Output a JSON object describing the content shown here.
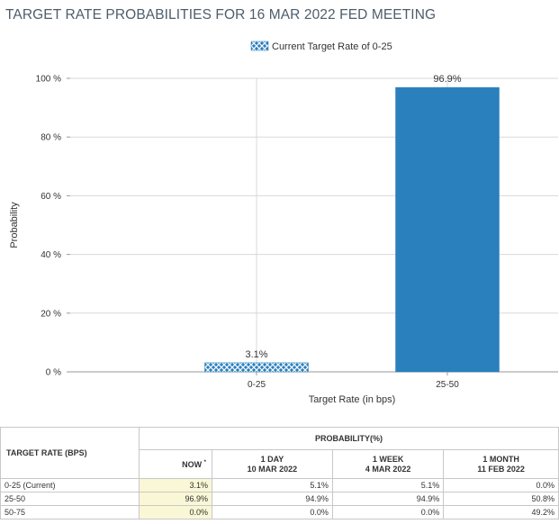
{
  "title": "TARGET RATE PROBABILITIES FOR 16 MAR 2022 FED MEETING",
  "legend": {
    "label": "Current Target Rate of 0-25"
  },
  "colors": {
    "bar": "#2a7fbd",
    "current_pattern": "#2a7fbd",
    "grid": "#d8d8d8"
  },
  "chart_data": {
    "type": "bar",
    "title": "TARGET RATE PROBABILITIES FOR 16 MAR 2022 FED MEETING",
    "xlabel": "Target Rate (in bps)",
    "ylabel": "Probability",
    "categories": [
      "0-25",
      "25-50"
    ],
    "values": [
      3.1,
      96.9
    ],
    "data_labels": [
      "3.1%",
      "96.9%"
    ],
    "highlight": [
      "current",
      "normal"
    ],
    "ylim": [
      0,
      100
    ],
    "yticks": [
      0,
      20,
      40,
      60,
      80,
      100
    ],
    "ytick_labels": [
      "0 %",
      "20 %",
      "40 %",
      "60 %",
      "80 %",
      "100 %"
    ],
    "grid": true,
    "legend_position": "top"
  },
  "table": {
    "rate_header": "TARGET RATE (BPS)",
    "prob_header": "PROBABILITY(%)",
    "columns": [
      {
        "line1": "NOW",
        "line2": "",
        "mark": "*"
      },
      {
        "line1": "1 DAY",
        "line2": "10 MAR 2022",
        "mark": ""
      },
      {
        "line1": "1 WEEK",
        "line2": "4 MAR 2022",
        "mark": ""
      },
      {
        "line1": "1 MONTH",
        "line2": "11 FEB 2022",
        "mark": ""
      }
    ],
    "rows": [
      {
        "rate": "0-25 (Current)",
        "values": [
          "3.1%",
          "5.1%",
          "5.1%",
          "0.0%"
        ]
      },
      {
        "rate": "25-50",
        "values": [
          "96.9%",
          "94.9%",
          "94.9%",
          "50.8%"
        ]
      },
      {
        "rate": "50-75",
        "values": [
          "0.0%",
          "0.0%",
          "0.0%",
          "49.2%"
        ]
      }
    ]
  }
}
